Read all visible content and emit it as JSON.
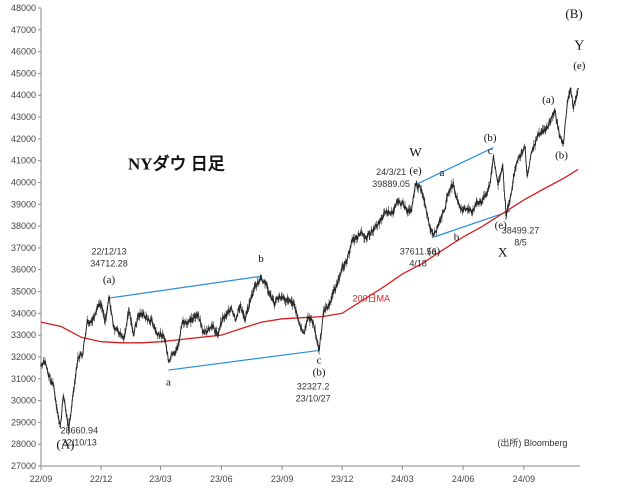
{
  "chart_data": {
    "type": "line",
    "title": "NYダウ 日足",
    "source": "(出所) Bloomberg",
    "xlabel": "",
    "ylabel": "",
    "ylim": [
      27000,
      48000
    ],
    "yticks": [
      27000,
      28000,
      29000,
      30000,
      31000,
      32000,
      33000,
      34000,
      35000,
      36000,
      37000,
      38000,
      39000,
      40000,
      41000,
      42000,
      43000,
      44000,
      45000,
      46000,
      47000,
      48000
    ],
    "xlim": [
      "2022-09-01",
      "2024-11-25"
    ],
    "xticks": [
      {
        "label": "22/09",
        "date": "2022-09-01"
      },
      {
        "label": "22/12",
        "date": "2022-12-01"
      },
      {
        "label": "23/03",
        "date": "2023-03-01"
      },
      {
        "label": "23/06",
        "date": "2023-06-01"
      },
      {
        "label": "23/09",
        "date": "2023-09-01"
      },
      {
        "label": "23/12",
        "date": "2023-12-01"
      },
      {
        "label": "24/03",
        "date": "2024-03-01"
      },
      {
        "label": "24/06",
        "date": "2024-06-01"
      },
      {
        "label": "24/09",
        "date": "2024-09-01"
      }
    ],
    "grid": false,
    "series": [
      {
        "name": "",
        "color": "#222222",
        "points": [
          [
            "2022-09-01",
            31600
          ],
          [
            "2022-09-07",
            31800
          ],
          [
            "2022-09-13",
            31100
          ],
          [
            "2022-09-20",
            30700
          ],
          [
            "2022-09-27",
            29300
          ],
          [
            "2022-09-30",
            28800
          ],
          [
            "2022-10-05",
            30200
          ],
          [
            "2022-10-10",
            29300
          ],
          [
            "2022-10-13",
            28660.94
          ],
          [
            "2022-10-20",
            30400
          ],
          [
            "2022-10-27",
            32000
          ],
          [
            "2022-11-03",
            32100
          ],
          [
            "2022-11-10",
            33700
          ],
          [
            "2022-11-17",
            33600
          ],
          [
            "2022-11-25",
            34300
          ],
          [
            "2022-12-01",
            34400
          ],
          [
            "2022-12-07",
            33600
          ],
          [
            "2022-12-13",
            34712.28
          ],
          [
            "2022-12-20",
            33400
          ],
          [
            "2022-12-28",
            33100
          ],
          [
            "2023-01-05",
            32900
          ],
          [
            "2023-01-12",
            34200
          ],
          [
            "2023-01-19",
            33000
          ],
          [
            "2023-01-26",
            33900
          ],
          [
            "2023-02-02",
            34000
          ],
          [
            "2023-02-09",
            33700
          ],
          [
            "2023-02-16",
            33700
          ],
          [
            "2023-02-23",
            33100
          ],
          [
            "2023-03-02",
            33000
          ],
          [
            "2023-03-08",
            32800
          ],
          [
            "2023-03-13",
            31800
          ],
          [
            "2023-03-20",
            32200
          ],
          [
            "2023-03-27",
            32400
          ],
          [
            "2023-04-03",
            33600
          ],
          [
            "2023-04-12",
            33600
          ],
          [
            "2023-04-20",
            33800
          ],
          [
            "2023-04-27",
            34000
          ],
          [
            "2023-05-04",
            33100
          ],
          [
            "2023-05-12",
            33300
          ],
          [
            "2023-05-19",
            33400
          ],
          [
            "2023-05-26",
            33000
          ],
          [
            "2023-06-02",
            33700
          ],
          [
            "2023-06-09",
            33900
          ],
          [
            "2023-06-16",
            34300
          ],
          [
            "2023-06-23",
            33700
          ],
          [
            "2023-06-30",
            34400
          ],
          [
            "2023-07-07",
            33700
          ],
          [
            "2023-07-14",
            34500
          ],
          [
            "2023-07-21",
            35200
          ],
          [
            "2023-07-31",
            35600
          ],
          [
            "2023-08-07",
            35400
          ],
          [
            "2023-08-14",
            34900
          ],
          [
            "2023-08-21",
            34400
          ],
          [
            "2023-08-28",
            34800
          ],
          [
            "2023-09-05",
            34600
          ],
          [
            "2023-09-12",
            34600
          ],
          [
            "2023-09-20",
            34400
          ],
          [
            "2023-09-27",
            33500
          ],
          [
            "2023-10-04",
            33100
          ],
          [
            "2023-10-11",
            33800
          ],
          [
            "2023-10-18",
            33600
          ],
          [
            "2023-10-27",
            32327.2
          ],
          [
            "2023-11-03",
            34100
          ],
          [
            "2023-11-10",
            34300
          ],
          [
            "2023-11-17",
            34900
          ],
          [
            "2023-11-24",
            35400
          ],
          [
            "2023-12-01",
            36200
          ],
          [
            "2023-12-08",
            36300
          ],
          [
            "2023-12-15",
            37300
          ],
          [
            "2023-12-22",
            37400
          ],
          [
            "2023-12-29",
            37700
          ],
          [
            "2024-01-05",
            37500
          ],
          [
            "2024-01-12",
            37600
          ],
          [
            "2024-01-19",
            37900
          ],
          [
            "2024-01-26",
            38100
          ],
          [
            "2024-02-02",
            38600
          ],
          [
            "2024-02-09",
            38700
          ],
          [
            "2024-02-16",
            38600
          ],
          [
            "2024-02-23",
            39100
          ],
          [
            "2024-03-01",
            39100
          ],
          [
            "2024-03-08",
            38700
          ],
          [
            "2024-03-15",
            38700
          ],
          [
            "2024-03-21",
            39889.05
          ],
          [
            "2024-03-28",
            39800
          ],
          [
            "2024-04-05",
            38900
          ],
          [
            "2024-04-12",
            37900
          ],
          [
            "2024-04-18",
            37611.56
          ],
          [
            "2024-04-26",
            38200
          ],
          [
            "2024-05-03",
            38700
          ],
          [
            "2024-05-10",
            39500
          ],
          [
            "2024-05-17",
            40000
          ],
          [
            "2024-05-24",
            39100
          ],
          [
            "2024-05-31",
            38700
          ],
          [
            "2024-06-07",
            38800
          ],
          [
            "2024-06-14",
            38600
          ],
          [
            "2024-06-21",
            39100
          ],
          [
            "2024-06-28",
            39100
          ],
          [
            "2024-07-05",
            39400
          ],
          [
            "2024-07-12",
            40000
          ],
          [
            "2024-07-17",
            41200
          ],
          [
            "2024-07-24",
            39900
          ],
          [
            "2024-07-31",
            40800
          ],
          [
            "2024-08-05",
            38499.27
          ],
          [
            "2024-08-12",
            39400
          ],
          [
            "2024-08-19",
            40700
          ],
          [
            "2024-08-26",
            41200
          ],
          [
            "2024-09-03",
            41600
          ],
          [
            "2024-09-06",
            40300
          ],
          [
            "2024-09-13",
            41400
          ],
          [
            "2024-09-20",
            42000
          ],
          [
            "2024-09-27",
            42300
          ],
          [
            "2024-10-04",
            42400
          ],
          [
            "2024-10-11",
            42800
          ],
          [
            "2024-10-18",
            43300
          ],
          [
            "2024-10-25",
            42100
          ],
          [
            "2024-10-31",
            41800
          ],
          [
            "2024-11-06",
            43700
          ],
          [
            "2024-11-11",
            44300
          ],
          [
            "2024-11-15",
            43400
          ],
          [
            "2024-11-22",
            44300
          ]
        ]
      },
      {
        "name": "200日MA",
        "color": "#d42020",
        "points": [
          [
            "2022-09-01",
            33600
          ],
          [
            "2022-10-01",
            33400
          ],
          [
            "2022-11-01",
            32900
          ],
          [
            "2022-12-01",
            32700
          ],
          [
            "2023-01-01",
            32650
          ],
          [
            "2023-02-01",
            32650
          ],
          [
            "2023-03-01",
            32700
          ],
          [
            "2023-04-01",
            32800
          ],
          [
            "2023-05-01",
            32900
          ],
          [
            "2023-06-01",
            33000
          ],
          [
            "2023-07-01",
            33300
          ],
          [
            "2023-08-01",
            33600
          ],
          [
            "2023-09-01",
            33750
          ],
          [
            "2023-10-01",
            33800
          ],
          [
            "2023-11-01",
            33850
          ],
          [
            "2023-12-01",
            34000
          ],
          [
            "2024-01-01",
            34600
          ],
          [
            "2024-02-01",
            35200
          ],
          [
            "2024-03-01",
            35800
          ],
          [
            "2024-04-01",
            36300
          ],
          [
            "2024-05-01",
            36900
          ],
          [
            "2024-06-01",
            37500
          ],
          [
            "2024-07-01",
            38000
          ],
          [
            "2024-08-01",
            38600
          ],
          [
            "2024-09-01",
            39200
          ],
          [
            "2024-10-01",
            39700
          ],
          [
            "2024-11-01",
            40200
          ],
          [
            "2024-11-22",
            40600
          ]
        ]
      }
    ],
    "trendlines": [
      {
        "color": "#2a8fd8",
        "from": [
          "2022-12-13",
          34700
        ],
        "to": [
          "2023-07-31",
          35700
        ]
      },
      {
        "color": "#2a8fd8",
        "from": [
          "2023-03-13",
          31400
        ],
        "to": [
          "2023-10-27",
          32300
        ]
      },
      {
        "color": "#2a8fd8",
        "from": [
          "2024-03-21",
          39900
        ],
        "to": [
          "2024-07-17",
          41600
        ]
      },
      {
        "color": "#2a8fd8",
        "from": [
          "2024-04-18",
          37500
        ],
        "to": [
          "2024-08-12",
          38700
        ]
      }
    ],
    "annotations": [
      {
        "text": "(A)",
        "at": [
          "2022-10-08",
          27800
        ],
        "style": "wave",
        "size": 13
      },
      {
        "text": "28660.94",
        "at": [
          "2022-10-29",
          28500
        ],
        "style": "note"
      },
      {
        "text": "22/10/13",
        "at": [
          "2022-10-29",
          27950
        ],
        "style": "note"
      },
      {
        "text": "22/12/13",
        "at": [
          "2022-12-13",
          36700
        ],
        "style": "note"
      },
      {
        "text": "34712.28",
        "at": [
          "2022-12-13",
          36150
        ],
        "style": "note"
      },
      {
        "text": "(a)",
        "at": [
          "2022-12-13",
          35400
        ],
        "style": "wave",
        "size": 11
      },
      {
        "text": "b",
        "at": [
          "2023-07-31",
          36350
        ],
        "style": "wave",
        "size": 11
      },
      {
        "text": "a",
        "at": [
          "2023-03-13",
          30700
        ],
        "style": "wave",
        "size": 11
      },
      {
        "text": "c",
        "at": [
          "2023-10-27",
          31700
        ],
        "style": "wave",
        "size": 11
      },
      {
        "text": "(b)",
        "at": [
          "2023-10-27",
          31150
        ],
        "style": "wave",
        "size": 11
      },
      {
        "text": "32327.2",
        "at": [
          "2023-10-18",
          30500
        ],
        "style": "note"
      },
      {
        "text": "23/10/27",
        "at": [
          "2023-10-18",
          29950
        ],
        "style": "note"
      },
      {
        "text": "NYダウ 日足",
        "at": [
          "2023-03-25",
          40600
        ],
        "style": "title",
        "size": 17
      },
      {
        "text": "W",
        "at": [
          "2024-03-21",
          41200
        ],
        "style": "wave",
        "size": 13
      },
      {
        "text": "(e)",
        "at": [
          "2024-03-21",
          40400
        ],
        "style": "wave",
        "size": 11
      },
      {
        "text": "24/3/21",
        "at": [
          "2024-02-13",
          40350
        ],
        "style": "note"
      },
      {
        "text": "39889.05",
        "at": [
          "2024-02-13",
          39800
        ],
        "style": "note"
      },
      {
        "text": "a",
        "at": [
          "2024-04-30",
          40300
        ],
        "style": "wave",
        "size": 11
      },
      {
        "text": "(a)",
        "at": [
          "2024-04-18",
          36700
        ],
        "style": "wave",
        "size": 11
      },
      {
        "text": "37611.56",
        "at": [
          "2024-03-25",
          36700
        ],
        "style": "note"
      },
      {
        "text": "4/18",
        "at": [
          "2024-03-25",
          36150
        ],
        "style": "note"
      },
      {
        "text": "b",
        "at": [
          "2024-05-22",
          37350
        ],
        "style": "wave",
        "size": 11
      },
      {
        "text": "(b)",
        "at": [
          "2024-07-12",
          41900
        ],
        "style": "wave",
        "size": 11
      },
      {
        "text": "c",
        "at": [
          "2024-07-12",
          41300
        ],
        "style": "wave",
        "size": 11
      },
      {
        "text": "(e)",
        "at": [
          "2024-07-28",
          37900
        ],
        "style": "wave",
        "size": 11
      },
      {
        "text": "38499.27",
        "at": [
          "2024-08-27",
          37650
        ],
        "style": "note"
      },
      {
        "text": "8/5",
        "at": [
          "2024-08-27",
          37100
        ],
        "style": "note"
      },
      {
        "text": "X",
        "at": [
          "2024-07-31",
          36600
        ],
        "style": "wave",
        "size": 13
      },
      {
        "text": "(a)",
        "at": [
          "2024-10-08",
          43650
        ],
        "style": "wave",
        "size": 11
      },
      {
        "text": "(b)",
        "at": [
          "2024-10-28",
          41100
        ],
        "style": "wave",
        "size": 11
      },
      {
        "text": "(B)",
        "at": [
          "2024-11-16",
          47550
        ],
        "style": "wave",
        "size": 13
      },
      {
        "text": "Y",
        "at": [
          "2024-11-24",
          46100
        ],
        "style": "wave",
        "size": 14
      },
      {
        "text": "(e)",
        "at": [
          "2024-11-24",
          45200
        ],
        "style": "wave",
        "size": 11
      },
      {
        "text": "200日MA",
        "at": [
          "2024-01-14",
          34550
        ],
        "style": "ma",
        "size": 9
      },
      {
        "text": "(出所) Bloomberg",
        "at": [
          "2024-09-14",
          27920
        ],
        "style": "note"
      }
    ]
  }
}
